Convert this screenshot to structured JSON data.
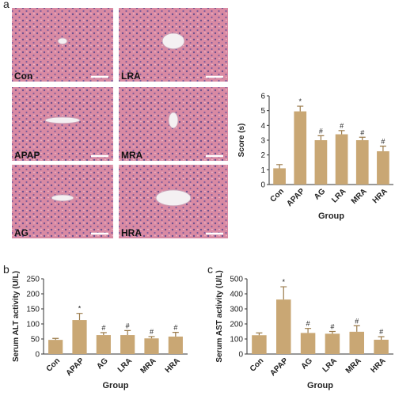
{
  "panel_labels": [
    "a",
    "b",
    "c"
  ],
  "images": [
    "Con",
    "LRA",
    "APAP",
    "MRA",
    "AG",
    "HRA"
  ],
  "chart_data": [
    {
      "type": "bar",
      "categories": [
        "Con",
        "APAP",
        "AG",
        "LRA",
        "MRA",
        "HRA"
      ],
      "values": [
        1.1,
        4.95,
        3.0,
        3.4,
        3.0,
        2.25
      ],
      "errors": [
        0.25,
        0.35,
        0.3,
        0.25,
        0.2,
        0.35
      ],
      "annotations": [
        null,
        "*",
        "#",
        "#",
        "#",
        "#"
      ],
      "ylim": [
        0,
        6
      ],
      "yticks": [
        0,
        1,
        2,
        3,
        4,
        5,
        6
      ],
      "ylabel": "Score (s)",
      "xlabel": "Group",
      "color": "#c9a774"
    },
    {
      "type": "bar",
      "categories": [
        "Con",
        "APAP",
        "AG",
        "LRA",
        "MRA",
        "HRA"
      ],
      "values": [
        47,
        113,
        63,
        63,
        52,
        58
      ],
      "errors": [
        5,
        22,
        8,
        15,
        6,
        14
      ],
      "annotations": [
        null,
        "*",
        "#",
        "#",
        "#",
        "#"
      ],
      "ylim": [
        0,
        250
      ],
      "yticks": [
        0,
        50,
        100,
        150,
        200,
        250
      ],
      "ylabel": "Serum ALT activity (U/L)",
      "xlabel": "Group",
      "color": "#c9a774"
    },
    {
      "type": "bar",
      "categories": [
        "Con",
        "APAP",
        "AG",
        "LRA",
        "MRA",
        "HRA"
      ],
      "values": [
        125,
        362,
        140,
        135,
        148,
        95
      ],
      "errors": [
        15,
        85,
        30,
        15,
        40,
        20
      ],
      "annotations": [
        null,
        "*",
        "#",
        "#",
        "#",
        "#"
      ],
      "ylim": [
        0,
        500
      ],
      "yticks": [
        0,
        100,
        200,
        300,
        400,
        500
      ],
      "ylabel": "Serum AST activity (U/L)",
      "xlabel": "Group",
      "color": "#c9a774"
    }
  ]
}
